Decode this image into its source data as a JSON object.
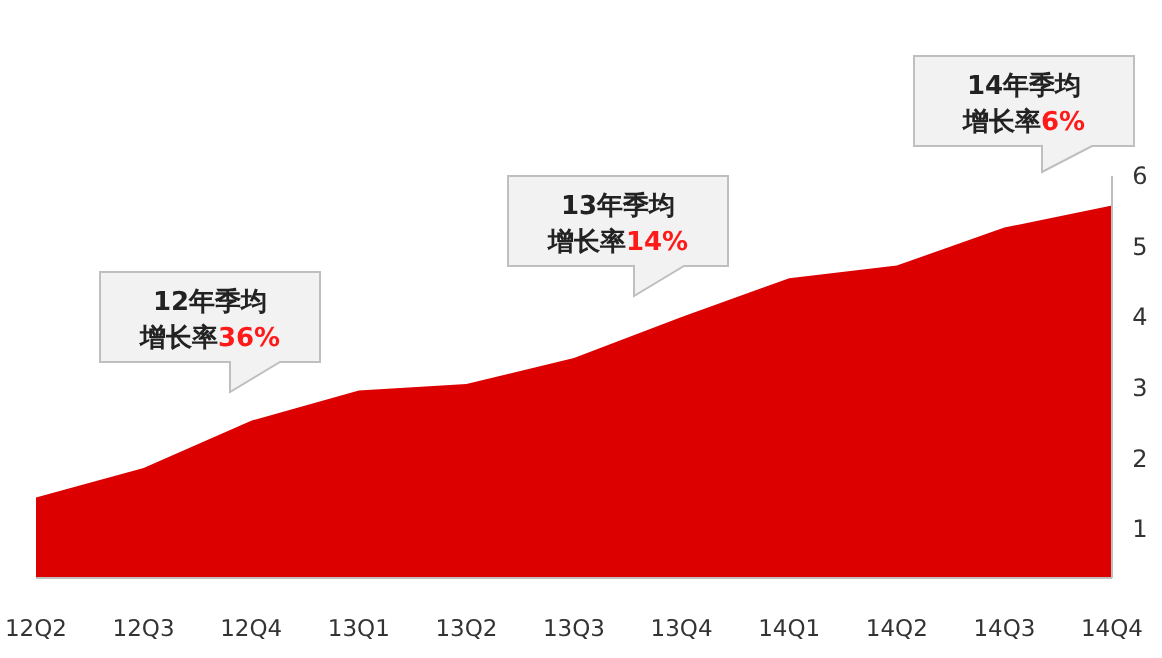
{
  "chart_data": {
    "type": "area",
    "categories": [
      "12Q2",
      "12Q3",
      "12Q4",
      "13Q1",
      "13Q2",
      "13Q3",
      "13Q4",
      "14Q1",
      "14Q2",
      "14Q3",
      "14Q4"
    ],
    "series": [
      {
        "color": "#dd0000",
        "values": [
          1.44,
          1.86,
          2.53,
          2.96,
          3.05,
          3.42,
          4.0,
          4.55,
          4.73,
          5.27,
          5.58
        ]
      }
    ],
    "ylim": [
      0.3,
      6
    ],
    "yticks": [
      1,
      2,
      3,
      4,
      5,
      6
    ],
    "grid": false,
    "annotations": [
      "12年季均增长率36%",
      "13年季均增长率14%",
      "14年季均增长率6%"
    ]
  }
}
